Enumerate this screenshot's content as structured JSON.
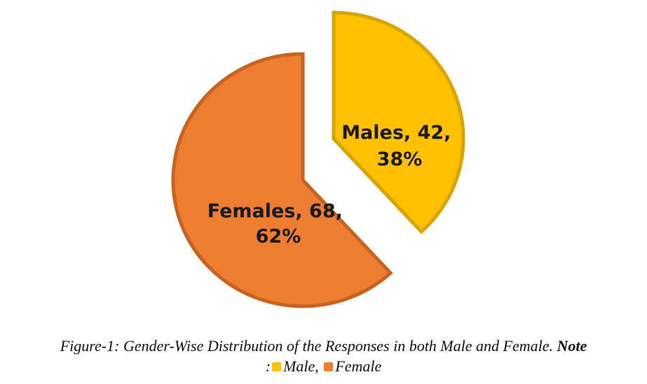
{
  "chart_data": {
    "type": "pie",
    "title": "Figure-1: Gender-Wise Distribution of the Responses in both Male and Female.",
    "slices": [
      {
        "name": "Males",
        "value": 42,
        "percent": 38,
        "color": "#FFC000",
        "edge": "#D9A300",
        "exploded": true,
        "label_line1": "Males, 42,",
        "label_line2": "38%"
      },
      {
        "name": "Females",
        "value": 68,
        "percent": 62,
        "color": "#ED7D31",
        "edge": "#C8631F",
        "exploded": false,
        "label_line1": "Females, 68,",
        "label_line2": "62%"
      }
    ],
    "legend": {
      "note_label": "Note",
      "separator": ":",
      "items": [
        {
          "label": "Male",
          "color": "#FFC000"
        },
        {
          "label": "Female",
          "color": "#ED7D31"
        }
      ]
    }
  }
}
